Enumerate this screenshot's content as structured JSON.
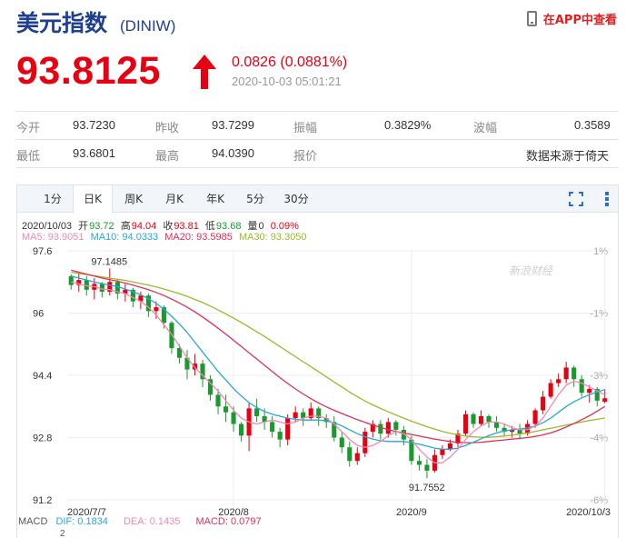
{
  "header": {
    "name": "美元指数",
    "code": "(DINIW)",
    "app_link": "在APP中查看"
  },
  "quote": {
    "price": "93.8125",
    "change": "0.0826 (0.0881%)",
    "time": "2020-10-03 05:01:21",
    "direction": "up",
    "color_up": "#e60012",
    "color_down": "#1a9a2e"
  },
  "stats": {
    "row1": [
      {
        "label": "今开",
        "value": "93.7230"
      },
      {
        "label": "昨收",
        "value": "93.7299"
      },
      {
        "label": "振幅",
        "value": "0.3829%"
      },
      {
        "label": "波幅",
        "value": "0.3589"
      }
    ],
    "row2": [
      {
        "label": "最低",
        "value": "93.6801"
      },
      {
        "label": "最高",
        "value": "94.0390"
      },
      {
        "label": "报价",
        "value": ""
      },
      {
        "label": "",
        "value": "数据来源于倚天"
      }
    ]
  },
  "tabs": [
    "1分",
    "日K",
    "周K",
    "月K",
    "年K",
    "5分",
    "30分"
  ],
  "active_tab": "日K",
  "info": {
    "date": "2020/10/03",
    "open_label": "开",
    "open": "93.72",
    "high_label": "高",
    "high": "94.04",
    "close_label": "收",
    "close": "93.81",
    "low_label": "低",
    "low": "93.68",
    "vol_label": "量",
    "vol": "0",
    "pct": "0.09%",
    "ma5": "MA5: 93.9051",
    "ma10": "MA10: 94.0333",
    "ma20": "MA20: 93.5985",
    "ma30": "MA30: 93.3050"
  },
  "macd": {
    "label": "MACD",
    "dif": "DIF: 0.1834",
    "dea": "DEA: 0.1435",
    "macd": "MACD: 0.0797",
    "axis_top": "2"
  },
  "watermark": "新浪财经",
  "chart_data": {
    "type": "candlestick",
    "x_ticks": [
      "2020/7/7",
      "2020/8",
      "2020/9",
      "2020/10/3"
    ],
    "y_ticks": [
      "97.6",
      "96",
      "94.4",
      "92.8",
      "91.2"
    ],
    "y_right_ticks": [
      "1%",
      "-1%",
      "-3%",
      "-4%",
      "-6%"
    ],
    "ylim": [
      91.2,
      97.6
    ],
    "annotations": {
      "max_label": "97.1485",
      "max_value": 97.1485,
      "min_label": "91.7552",
      "min_value": 91.7552
    },
    "ma_colors": {
      "ma5": "#f08ab0",
      "ma10": "#2aa6d6",
      "ma20": "#e0305a",
      "ma30": "#9aba2a"
    },
    "candles": [
      [
        96.95,
        96.72,
        97.0,
        96.6
      ],
      [
        96.72,
        96.85,
        97.05,
        96.55
      ],
      [
        96.85,
        96.6,
        96.95,
        96.45
      ],
      [
        96.6,
        96.75,
        96.9,
        96.35
      ],
      [
        96.75,
        96.55,
        96.8,
        96.4
      ],
      [
        96.55,
        96.8,
        97.1485,
        96.45
      ],
      [
        96.8,
        96.5,
        96.85,
        96.35
      ],
      [
        96.5,
        96.6,
        96.75,
        96.3
      ],
      [
        96.6,
        96.3,
        96.65,
        96.15
      ],
      [
        96.3,
        96.45,
        96.55,
        96.1
      ],
      [
        96.45,
        96.05,
        96.5,
        95.9
      ],
      [
        96.05,
        96.15,
        96.3,
        95.85
      ],
      [
        96.15,
        95.75,
        96.2,
        95.6
      ],
      [
        95.75,
        95.1,
        95.8,
        94.95
      ],
      [
        95.1,
        94.85,
        95.2,
        94.7
      ],
      [
        94.85,
        94.55,
        95.05,
        94.3
      ],
      [
        94.55,
        94.7,
        94.95,
        94.4
      ],
      [
        94.7,
        94.3,
        94.8,
        94.1
      ],
      [
        94.3,
        93.9,
        94.4,
        93.75
      ],
      [
        93.9,
        93.6,
        94.05,
        93.4
      ],
      [
        93.6,
        93.45,
        93.9,
        93.2
      ],
      [
        93.45,
        93.15,
        93.6,
        92.95
      ],
      [
        93.15,
        92.85,
        93.2,
        92.7
      ],
      [
        92.85,
        93.55,
        93.7,
        92.45
      ],
      [
        93.55,
        93.35,
        93.8,
        93.2
      ],
      [
        93.35,
        93.2,
        93.55,
        93.0
      ],
      [
        93.2,
        92.95,
        93.35,
        92.8
      ],
      [
        92.95,
        92.75,
        93.05,
        92.55
      ],
      [
        92.75,
        93.3,
        93.4,
        92.6
      ],
      [
        93.3,
        93.45,
        93.6,
        93.2
      ],
      [
        93.45,
        93.3,
        93.55,
        93.1
      ],
      [
        93.3,
        93.55,
        93.7,
        93.25
      ],
      [
        93.55,
        93.3,
        93.6,
        93.1
      ],
      [
        93.3,
        93.2,
        93.4,
        93.05
      ],
      [
        93.2,
        92.8,
        93.35,
        92.7
      ],
      [
        92.8,
        92.55,
        92.95,
        92.4
      ],
      [
        92.55,
        92.2,
        92.7,
        92.05
      ],
      [
        92.2,
        92.4,
        92.55,
        92.1
      ],
      [
        92.4,
        92.95,
        93.05,
        92.3
      ],
      [
        92.95,
        93.15,
        93.25,
        92.8
      ],
      [
        93.15,
        92.9,
        93.25,
        92.75
      ],
      [
        92.9,
        93.2,
        93.3,
        92.8
      ],
      [
        93.2,
        93.0,
        93.25,
        92.85
      ],
      [
        93.0,
        92.75,
        93.1,
        92.6
      ],
      [
        92.75,
        92.2,
        92.85,
        92.1
      ],
      [
        92.2,
        92.1,
        92.35,
        91.95
      ],
      [
        92.1,
        91.95,
        92.25,
        91.7552
      ],
      [
        91.95,
        92.35,
        92.5,
        91.9
      ],
      [
        92.35,
        92.5,
        92.6,
        92.25
      ],
      [
        92.5,
        92.65,
        92.75,
        92.45
      ],
      [
        92.65,
        92.9,
        93.0,
        92.55
      ],
      [
        92.9,
        93.4,
        93.5,
        92.85
      ],
      [
        93.4,
        93.15,
        93.45,
        93.05
      ],
      [
        93.15,
        93.35,
        93.5,
        93.1
      ],
      [
        93.35,
        93.2,
        93.4,
        93.05
      ],
      [
        93.2,
        93.05,
        93.35,
        92.95
      ],
      [
        93.05,
        92.95,
        93.15,
        92.85
      ],
      [
        92.95,
        93.0,
        93.1,
        92.8
      ],
      [
        93.0,
        92.9,
        93.15,
        92.75
      ],
      [
        92.9,
        93.15,
        93.25,
        92.85
      ],
      [
        93.15,
        93.5,
        93.55,
        93.05
      ],
      [
        93.5,
        93.85,
        94.0,
        93.4
      ],
      [
        93.85,
        94.2,
        94.3,
        93.8
      ],
      [
        94.2,
        94.3,
        94.45,
        94.1
      ],
      [
        94.3,
        94.6,
        94.75,
        94.2
      ],
      [
        94.6,
        94.3,
        94.65,
        94.1
      ],
      [
        94.3,
        93.95,
        94.4,
        93.85
      ],
      [
        93.95,
        94.05,
        94.15,
        93.7
      ],
      [
        94.05,
        93.75,
        94.1,
        93.6
      ],
      [
        93.72,
        93.81,
        94.04,
        93.68
      ]
    ],
    "ma5": [
      96.8,
      96.75,
      96.7,
      96.68,
      96.62,
      96.6,
      96.55,
      96.5,
      96.4,
      96.3,
      96.15,
      95.95,
      95.7,
      95.45,
      95.15,
      94.85,
      94.6,
      94.4,
      94.2,
      94.0,
      93.75,
      93.5,
      93.3,
      93.2,
      93.15,
      93.2,
      93.25,
      93.2,
      93.15,
      93.2,
      93.3,
      93.35,
      93.35,
      93.3,
      93.15,
      92.95,
      92.75,
      92.6,
      92.55,
      92.6,
      92.7,
      92.85,
      92.95,
      92.9,
      92.75,
      92.5,
      92.3,
      92.15,
      92.15,
      92.3,
      92.5,
      92.75,
      92.95,
      93.1,
      93.2,
      93.2,
      93.15,
      93.05,
      93.0,
      93.0,
      93.1,
      93.3,
      93.6,
      93.9,
      94.15,
      94.25,
      94.2,
      94.1,
      94.0,
      93.9
    ],
    "ma10": [
      96.95,
      96.9,
      96.85,
      96.8,
      96.76,
      96.72,
      96.68,
      96.62,
      96.55,
      96.47,
      96.37,
      96.25,
      96.1,
      95.92,
      95.72,
      95.5,
      95.25,
      95.0,
      94.75,
      94.5,
      94.28,
      94.06,
      93.87,
      93.7,
      93.57,
      93.47,
      93.4,
      93.35,
      93.3,
      93.27,
      93.25,
      93.25,
      93.25,
      93.23,
      93.18,
      93.1,
      93.0,
      92.9,
      92.82,
      92.76,
      92.72,
      92.7,
      92.7,
      92.7,
      92.67,
      92.63,
      92.58,
      92.53,
      92.5,
      92.5,
      92.53,
      92.6,
      92.68,
      92.77,
      92.85,
      92.92,
      92.97,
      93.0,
      93.02,
      93.05,
      93.1,
      93.18,
      93.3,
      93.45,
      93.6,
      93.72,
      93.82,
      93.9,
      93.97,
      94.03
    ],
    "ma20": [
      97.1,
      97.05,
      97.0,
      96.95,
      96.9,
      96.86,
      96.82,
      96.77,
      96.72,
      96.66,
      96.6,
      96.53,
      96.45,
      96.36,
      96.26,
      96.15,
      96.03,
      95.9,
      95.76,
      95.61,
      95.46,
      95.3,
      95.14,
      94.98,
      94.82,
      94.66,
      94.5,
      94.34,
      94.19,
      94.05,
      93.92,
      93.8,
      93.69,
      93.59,
      93.5,
      93.42,
      93.34,
      93.26,
      93.19,
      93.12,
      93.06,
      93.0,
      92.96,
      92.92,
      92.88,
      92.84,
      92.8,
      92.76,
      92.73,
      92.7,
      92.68,
      92.67,
      92.67,
      92.68,
      92.7,
      92.72,
      92.74,
      92.76,
      92.78,
      92.8,
      92.83,
      92.87,
      92.92,
      92.99,
      93.07,
      93.16,
      93.26,
      93.36,
      93.48,
      93.6
    ],
    "ma30": [
      97.05,
      97.02,
      96.99,
      96.96,
      96.93,
      96.9,
      96.87,
      96.84,
      96.8,
      96.76,
      96.72,
      96.67,
      96.62,
      96.56,
      96.5,
      96.43,
      96.35,
      96.27,
      96.18,
      96.08,
      95.98,
      95.87,
      95.76,
      95.64,
      95.52,
      95.4,
      95.27,
      95.14,
      95.01,
      94.88,
      94.75,
      94.62,
      94.49,
      94.36,
      94.23,
      94.1,
      93.97,
      93.85,
      93.74,
      93.64,
      93.55,
      93.46,
      93.38,
      93.3,
      93.22,
      93.15,
      93.08,
      93.02,
      92.96,
      92.91,
      92.87,
      92.84,
      92.82,
      92.81,
      92.81,
      92.82,
      92.84,
      92.86,
      92.89,
      92.92,
      92.96,
      93.0,
      93.04,
      93.08,
      93.12,
      93.16,
      93.2,
      93.24,
      93.27,
      93.305
    ]
  }
}
